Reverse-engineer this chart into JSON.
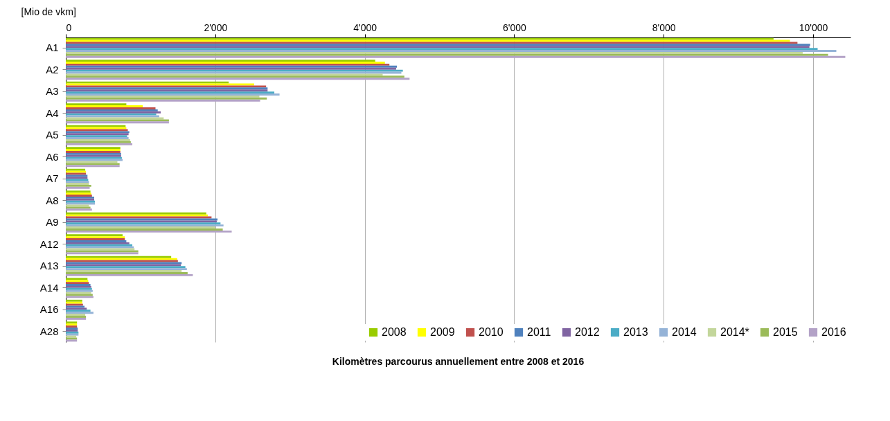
{
  "chart_data": {
    "type": "bar",
    "orientation": "horizontal",
    "title": "Kilomètres parcourus annuellement entre 2008 et 2016",
    "xlabel": "[Mio de vkm]",
    "categories": [
      "A1",
      "A2",
      "A3",
      "A4",
      "A5",
      "A6",
      "A7",
      "A8",
      "A9",
      "A12",
      "A13",
      "A14",
      "A16",
      "A28"
    ],
    "xlim": [
      0,
      10500
    ],
    "xticks": [
      0,
      {
        "value": 2000,
        "label": "2'000"
      },
      {
        "value": 4000,
        "label": "4'000"
      },
      {
        "value": 6000,
        "label": "6'000"
      },
      {
        "value": 8000,
        "label": "8'000"
      },
      {
        "value": 10000,
        "label": "10'000"
      }
    ],
    "grid": "x",
    "legend": "bottom right",
    "series": [
      {
        "name": "2008",
        "color": "#99cc00",
        "values": [
          9470,
          4140,
          2180,
          810,
          800,
          730,
          260,
          330,
          1880,
          760,
          1410,
          290,
          220,
          150
        ]
      },
      {
        "name": "2009",
        "color": "#ffff00",
        "values": [
          9690,
          4270,
          2520,
          1030,
          810,
          730,
          270,
          340,
          1900,
          790,
          1490,
          300,
          220,
          150
        ]
      },
      {
        "name": "2010",
        "color": "#c0504d",
        "values": [
          9790,
          4330,
          2680,
          1200,
          830,
          730,
          270,
          350,
          1950,
          790,
          1500,
          310,
          230,
          150
        ]
      },
      {
        "name": "2011",
        "color": "#4f81bd",
        "values": [
          9960,
          4430,
          2700,
          1230,
          850,
          740,
          290,
          380,
          2030,
          810,
          1550,
          330,
          250,
          160
        ]
      },
      {
        "name": "2012",
        "color": "#8064a2",
        "values": [
          9950,
          4420,
          2700,
          1270,
          840,
          740,
          290,
          380,
          2020,
          850,
          1540,
          340,
          280,
          160
        ]
      },
      {
        "name": "2013",
        "color": "#4bacc6",
        "values": [
          10060,
          4510,
          2790,
          1210,
          820,
          750,
          300,
          390,
          2070,
          890,
          1600,
          350,
          330,
          170
        ]
      },
      {
        "name": "2014",
        "color": "#95b3d7",
        "values": [
          10310,
          4490,
          2860,
          1250,
          840,
          760,
          310,
          390,
          2110,
          910,
          1620,
          360,
          370,
          170
        ]
      },
      {
        "name": "2014*",
        "color": "#c3d69b",
        "values": [
          9860,
          4240,
          2590,
          1310,
          860,
          690,
          310,
          310,
          2000,
          920,
          1550,
          340,
          260,
          140
        ]
      },
      {
        "name": "2015",
        "color": "#9bbb59",
        "values": [
          10200,
          4530,
          2690,
          1380,
          870,
          720,
          340,
          330,
          2100,
          970,
          1630,
          360,
          270,
          150
        ]
      },
      {
        "name": "2016",
        "color": "#b3a2c7",
        "values": [
          10430,
          4600,
          2600,
          1380,
          890,
          720,
          320,
          350,
          2220,
          970,
          1700,
          370,
          270,
          150
        ]
      }
    ]
  }
}
